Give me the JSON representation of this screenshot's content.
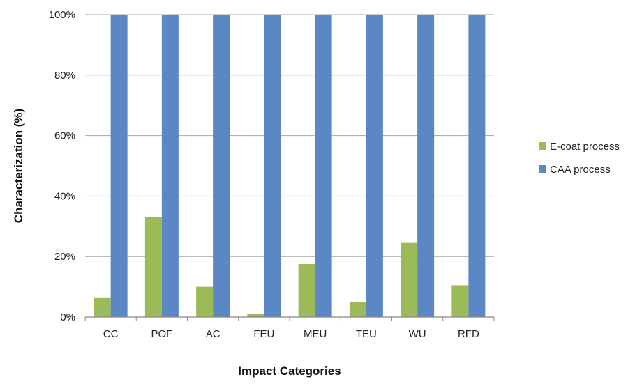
{
  "chart_data": {
    "type": "bar",
    "title": "",
    "xlabel": "Impact Categories",
    "ylabel": "Characterization (%)",
    "ylim": [
      0,
      100
    ],
    "yticks": [
      "0%",
      "20%",
      "40%",
      "60%",
      "80%",
      "100%"
    ],
    "ytick_values": [
      0,
      20,
      40,
      60,
      80,
      100
    ],
    "categories": [
      "CC",
      "POF",
      "AC",
      "FEU",
      "MEU",
      "TEU",
      "WU",
      "RFD"
    ],
    "series": [
      {
        "name": "E-coat process",
        "color": "#9bbb59",
        "values": [
          6.5,
          33,
          10,
          1,
          17.5,
          5,
          24.5,
          10.5
        ]
      },
      {
        "name": "CAA process",
        "color": "#5b88c5",
        "values": [
          100,
          100,
          100,
          100,
          100,
          100,
          100,
          100
        ]
      }
    ],
    "grid": true,
    "legend": "right"
  }
}
